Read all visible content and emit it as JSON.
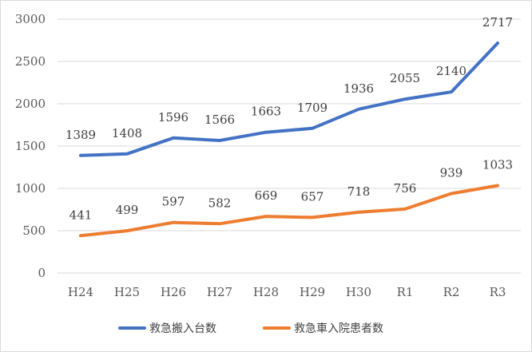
{
  "chart_data": {
    "type": "line",
    "categories": [
      "H24",
      "H25",
      "H26",
      "H27",
      "H28",
      "H29",
      "H30",
      "R1",
      "R2",
      "R3"
    ],
    "series": [
      {
        "name": "救急搬入台数",
        "color": "#4472c4",
        "values": [
          1389,
          1408,
          1596,
          1566,
          1663,
          1709,
          1936,
          2055,
          2140,
          2717
        ]
      },
      {
        "name": "救急車入院患者数",
        "color": "#ed7d31",
        "values": [
          441,
          499,
          597,
          582,
          669,
          657,
          718,
          756,
          939,
          1033
        ]
      }
    ],
    "ylim": [
      0,
      3000
    ],
    "yticks": [
      0,
      500,
      1000,
      1500,
      2000,
      2500,
      3000
    ],
    "grid": true,
    "legend": "bottom",
    "title": "",
    "xlabel": "",
    "ylabel": ""
  }
}
